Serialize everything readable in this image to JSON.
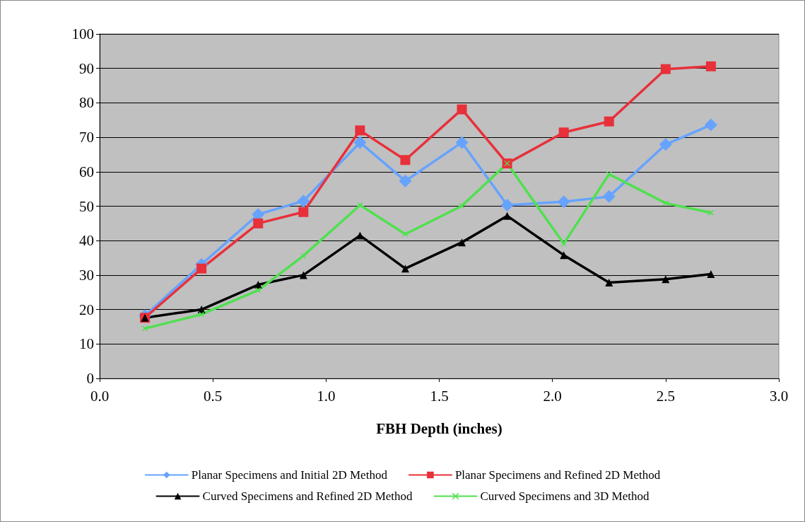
{
  "chart_data": {
    "type": "line",
    "xlabel": "FBH Depth (inches)",
    "x": [
      0.2,
      0.45,
      0.7,
      0.9,
      1.15,
      1.35,
      1.6,
      1.8,
      2.05,
      2.25,
      2.5,
      2.7
    ],
    "series": [
      {
        "name": "Planar Specimens and Initial 2D Method",
        "color": "#66a3ff",
        "marker": "diamond",
        "values": [
          18.2,
          33.1,
          47.6,
          51.5,
          68.5,
          57.3,
          68.5,
          50.3,
          51.3,
          52.8,
          67.9,
          73.6
        ]
      },
      {
        "name": "Planar Specimens and Refined 2D Method",
        "color": "#e8303a",
        "marker": "square",
        "values": [
          17.6,
          31.9,
          45,
          48.3,
          72,
          63.4,
          78.1,
          62.4,
          71.4,
          74.6,
          89.8,
          90.6
        ]
      },
      {
        "name": "Curved Specimens and Refined 2D Method",
        "color": "#000000",
        "marker": "triangle",
        "values": [
          17.6,
          20,
          27.2,
          30,
          41.5,
          31.9,
          39.5,
          47.2,
          35.8,
          27.8,
          28.8,
          30.3
        ]
      },
      {
        "name": "Curved Specimens and 3D Method",
        "color": "#4fe04f",
        "marker": "cross",
        "values": [
          14.5,
          18.6,
          25.6,
          35.6,
          50.3,
          41.9,
          50.1,
          62.4,
          39.1,
          59.3,
          50.9,
          48.1
        ]
      }
    ],
    "xlim": [
      0,
      3
    ],
    "xticks": [
      {
        "value": 0,
        "label": "0.0"
      },
      {
        "value": 0.5,
        "label": "0.5"
      },
      {
        "value": 1,
        "label": "1.0"
      },
      {
        "value": 1.5,
        "label": "1.5"
      },
      {
        "value": 2,
        "label": "2.0"
      },
      {
        "value": 2.5,
        "label": "2.5"
      },
      {
        "value": 3,
        "label": "3.0"
      }
    ],
    "ylim": [
      0,
      100
    ],
    "yticks": [
      0,
      10,
      20,
      30,
      40,
      50,
      60,
      70,
      80,
      90,
      100
    ],
    "grid": "y",
    "legend": "bottom",
    "line_style": "solid"
  }
}
